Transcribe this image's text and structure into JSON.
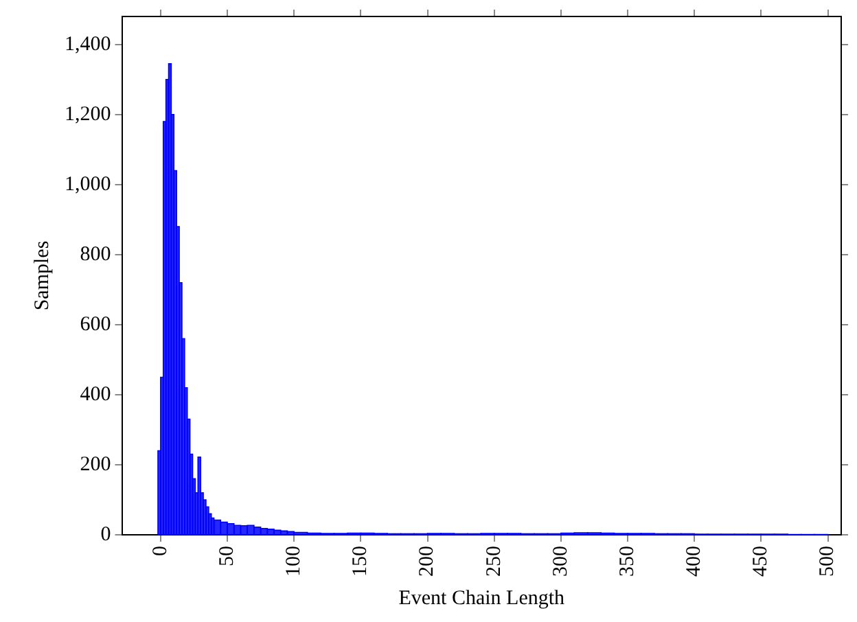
{
  "chart_data": {
    "type": "histogram",
    "xlabel": "Event Chain Length",
    "ylabel": "Samples",
    "color": "#0000ff",
    "bins": [
      -2,
      0,
      2,
      4,
      6,
      8,
      10,
      12,
      14,
      16,
      18,
      20,
      22,
      24,
      26,
      28,
      30,
      32,
      34,
      36,
      38,
      40,
      45,
      50,
      55,
      60,
      65,
      70,
      75,
      80,
      85,
      90,
      95,
      100,
      110,
      120,
      130,
      140,
      150,
      160,
      170,
      180,
      190,
      200,
      210,
      220,
      230,
      240,
      250,
      260,
      270,
      280,
      290,
      300,
      310,
      320,
      330,
      340,
      350,
      360,
      370,
      380,
      390,
      400,
      410,
      420,
      430,
      440,
      450,
      460,
      470,
      480,
      490,
      500
    ],
    "values": [
      240,
      450,
      1180,
      1300,
      1345,
      1200,
      1040,
      880,
      720,
      560,
      420,
      330,
      230,
      160,
      120,
      222,
      120,
      100,
      80,
      60,
      48,
      42,
      36,
      32,
      27,
      26,
      27,
      22,
      18,
      16,
      13,
      11,
      9,
      7,
      5,
      4,
      4,
      5,
      5,
      4,
      3,
      3,
      3,
      4,
      4,
      3,
      3,
      4,
      4,
      4,
      3,
      3,
      3,
      5,
      6,
      6,
      5,
      4,
      4,
      4,
      3,
      3,
      3,
      2,
      2,
      2,
      2,
      2,
      2,
      2,
      1,
      1,
      1
    ],
    "xlim": [
      -29,
      510
    ],
    "xticks": [
      0,
      50,
      100,
      150,
      200,
      250,
      300,
      350,
      400,
      450,
      500
    ],
    "ylim": [
      0,
      1480
    ],
    "yticks": [
      0,
      {
        "value": 200,
        "label": "200"
      },
      {
        "value": 400,
        "label": "400"
      },
      {
        "value": 600,
        "label": "600"
      },
      {
        "value": 800,
        "label": "800"
      },
      {
        "value": 1000,
        "label": "1,000"
      },
      {
        "value": 1200,
        "label": "1,200"
      },
      {
        "value": 1400,
        "label": "1,400"
      }
    ],
    "grid": false
  }
}
